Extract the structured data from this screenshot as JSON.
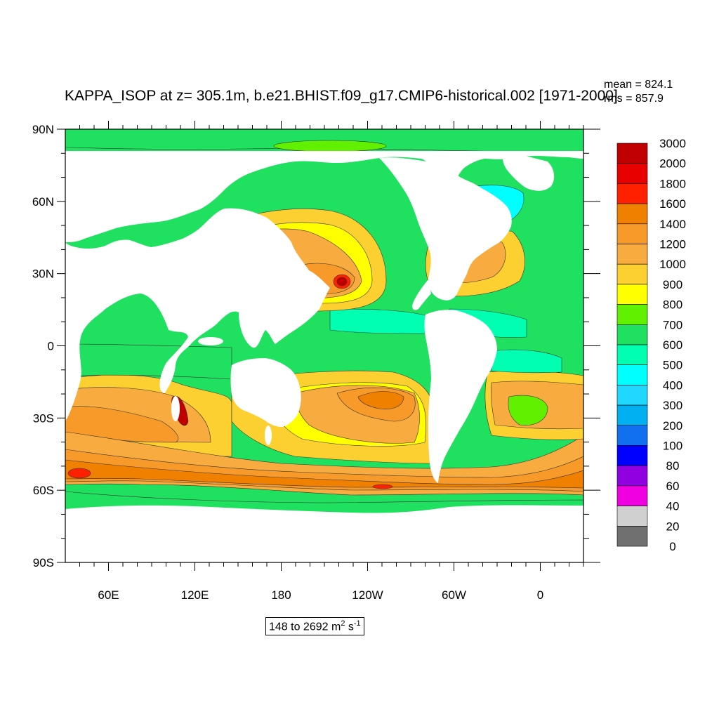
{
  "title": "KAPPA_ISOP at z= 305.1m, b.e21.BHIST.f09_g17.CMIP6-historical.002 [1971-2000]",
  "stats": {
    "mean": "mean = 824.1",
    "rms": "rms = 857.9"
  },
  "units": {
    "range": "148 to 2692",
    "unit_main": "m",
    "unit_exp": "2",
    "unit_main2": "s",
    "unit_exp2": "-1"
  },
  "y_ticks": [
    {
      "label": "90N",
      "lat": 90
    },
    {
      "label": "60N",
      "lat": 60
    },
    {
      "label": "30N",
      "lat": 30
    },
    {
      "label": "0",
      "lat": 0
    },
    {
      "label": "30S",
      "lat": -30
    },
    {
      "label": "60S",
      "lat": -60
    },
    {
      "label": "90S",
      "lat": -90
    }
  ],
  "x_ticks": [
    {
      "label": "60E",
      "lon": 60
    },
    {
      "label": "120E",
      "lon": 120
    },
    {
      "label": "180",
      "lon": 180
    },
    {
      "label": "120W",
      "lon": 240
    },
    {
      "label": "60W",
      "lon": 300
    },
    {
      "label": "0",
      "lon": 360
    }
  ],
  "colorbar": {
    "labels": [
      "3000",
      "2000",
      "1800",
      "1600",
      "1400",
      "1200",
      "1000",
      "900",
      "800",
      "700",
      "600",
      "500",
      "400",
      "300",
      "200",
      "100",
      "80",
      "60",
      "40",
      "20",
      "0"
    ],
    "colors": [
      "#c00000",
      "#e80000",
      "#ff2000",
      "#f08000",
      "#f89a2a",
      "#f8ac40",
      "#fcd030",
      "#ffff00",
      "#60f000",
      "#20e060",
      "#00ffb0",
      "#00ffff",
      "#20d8ff",
      "#00b0f0",
      "#1070f0",
      "#0000ff",
      "#9000e0",
      "#f000e0",
      "#d0d0d0",
      "#707070"
    ]
  },
  "colors": {
    "land": "#ffffff",
    "ocean_base": "#20e060",
    "frame": "#000000"
  }
}
